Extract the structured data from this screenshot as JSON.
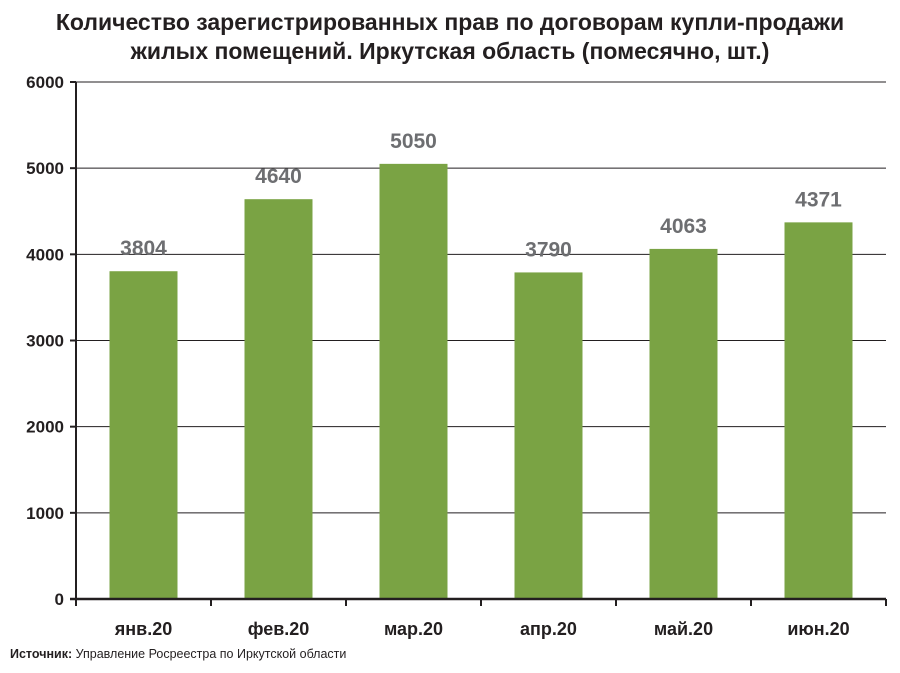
{
  "title_lines": [
    "Количество зарегистрированных прав по договорам купли-продажи",
    "жилых помещений. Иркутская область (помесячно, шт.)"
  ],
  "source": {
    "label": "Источник:",
    "text": "Управление Росреестра по Иркутской области"
  },
  "colors": {
    "bar": "#7aa344",
    "label": "#6d6e71",
    "grid": "#231f20",
    "axis": "#231f20"
  },
  "chart_data": {
    "type": "bar",
    "title": "Количество зарегистрированных прав по договорам купли-продажи жилых помещений. Иркутская область (помесячно, шт.)",
    "categories": [
      "янв.20",
      "фев.20",
      "мар.20",
      "апр.20",
      "май.20",
      "июн.20"
    ],
    "values": [
      3804,
      4640,
      5050,
      3790,
      4063,
      4371
    ],
    "data_labels": [
      "3804",
      "4640",
      "5050",
      "3790",
      "4063",
      "4371"
    ],
    "yticks": [
      "0",
      "1000",
      "2000",
      "3000",
      "4000",
      "5000",
      "6000"
    ],
    "ylim": [
      0,
      6000
    ],
    "xlabel": "",
    "ylabel": "",
    "grid": true,
    "legend": "none"
  }
}
